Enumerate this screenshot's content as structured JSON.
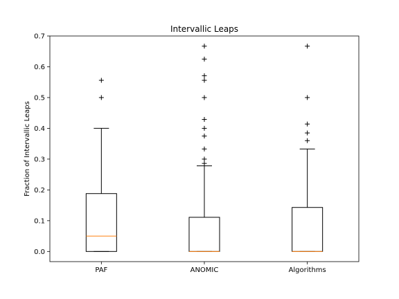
{
  "chart_data": {
    "type": "boxplot",
    "title": "Intervallic Leaps",
    "xlabel": "",
    "ylabel": "Fraction of Intervallic Leaps",
    "ylim": [
      -0.033,
      0.7
    ],
    "yticks": [
      0.0,
      0.1,
      0.2,
      0.3,
      0.4,
      0.5,
      0.6,
      0.7
    ],
    "ytick_labels": [
      "0.0",
      "0.1",
      "0.2",
      "0.3",
      "0.4",
      "0.5",
      "0.6",
      "0.7"
    ],
    "grid": false,
    "categories": [
      "PAF",
      "ANOMIC",
      "Algorithms"
    ],
    "boxes": [
      {
        "label": "PAF",
        "whisker_low": 0.0,
        "q1": 0.0,
        "median": 0.05,
        "q3": 0.188,
        "whisker_high": 0.4,
        "outliers": [
          0.5,
          0.556
        ]
      },
      {
        "label": "ANOMIC",
        "whisker_low": 0.0,
        "q1": 0.0,
        "median": 0.0,
        "q3": 0.111,
        "whisker_high": 0.278,
        "outliers": [
          0.286,
          0.3,
          0.333,
          0.375,
          0.4,
          0.429,
          0.5,
          0.556,
          0.571,
          0.625,
          0.667
        ]
      },
      {
        "label": "Algorithms",
        "whisker_low": 0.0,
        "q1": 0.0,
        "median": 0.0,
        "q3": 0.143,
        "whisker_high": 0.333,
        "outliers": [
          0.36,
          0.385,
          0.414,
          0.5,
          0.667
        ]
      }
    ],
    "colors": {
      "box": "#000000",
      "median": "#ff7f0e",
      "outlier": "#000000"
    }
  }
}
